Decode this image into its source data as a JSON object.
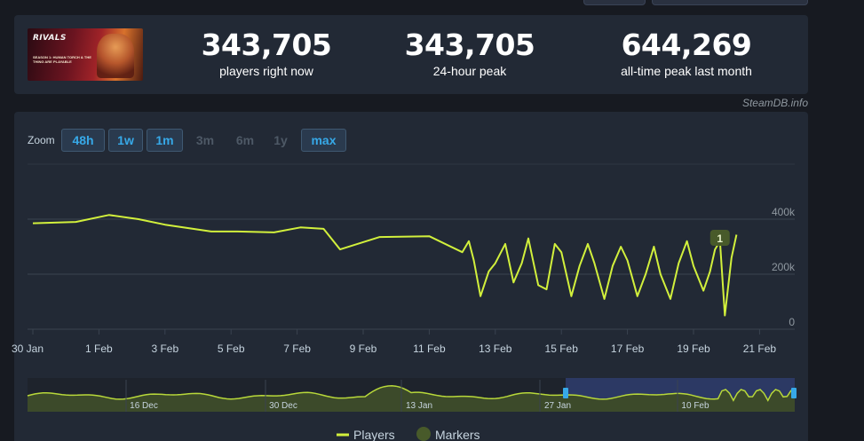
{
  "stats": {
    "current_value": "343,705",
    "current_label": "players right now",
    "peak24_value": "343,705",
    "peak24_label": "24-hour peak",
    "alltime_value": "644,269",
    "alltime_label": "all-time peak last month"
  },
  "game_banner": {
    "logo": "RIVALS",
    "subtitle": "SEASON 1: HUMAN TORCH & THE THING ARE PLAYABLE"
  },
  "credit": "SteamDB.info",
  "zoom": {
    "label": "Zoom",
    "options": [
      {
        "label": "48h",
        "enabled": true
      },
      {
        "label": "1w",
        "enabled": true
      },
      {
        "label": "1m",
        "enabled": true
      },
      {
        "label": "3m",
        "enabled": false
      },
      {
        "label": "6m",
        "enabled": false
      },
      {
        "label": "1y",
        "enabled": false
      },
      {
        "label": "max",
        "enabled": true
      }
    ]
  },
  "colors": {
    "series": "#d2f03c",
    "marker": "#485a2a",
    "accent": "#37a9e8",
    "navigator_selection": "#2f3d6e"
  },
  "chart_data": {
    "type": "line",
    "title": "",
    "x_tick_labels": [
      "30 Jan",
      "1 Feb",
      "3 Feb",
      "5 Feb",
      "7 Feb",
      "9 Feb",
      "11 Feb",
      "13 Feb",
      "15 Feb",
      "17 Feb",
      "19 Feb",
      "21 Feb"
    ],
    "y_tick_labels": [
      "0",
      "200k",
      "400k"
    ],
    "ylim": [
      0,
      400000
    ],
    "grid": true,
    "legend_placement": "bottom-center",
    "series": [
      {
        "name": "Players",
        "x_days_offset": [
          0,
          1.3,
          2.3,
          3.2,
          4.0,
          5.4,
          6.2,
          7.3,
          8.1,
          8.8,
          9.3,
          10.5,
          12.0,
          13.0,
          13.2,
          13.35,
          13.55,
          13.8,
          14.0,
          14.3,
          14.55,
          14.8,
          15.0,
          15.3,
          15.55,
          15.8,
          16.0,
          16.3,
          16.55,
          16.8,
          17.0,
          17.3,
          17.55,
          17.8,
          18.0,
          18.3,
          18.55,
          18.8,
          19.0,
          19.3,
          19.55,
          19.8,
          20.0,
          20.3,
          20.5,
          20.65,
          20.8,
          20.95,
          21.15,
          21.3
        ],
        "values": [
          385000,
          390000,
          415000,
          400000,
          380000,
          355000,
          355000,
          352000,
          370000,
          365000,
          290000,
          335000,
          338000,
          280000,
          320000,
          250000,
          120000,
          210000,
          240000,
          310000,
          170000,
          240000,
          330000,
          160000,
          145000,
          310000,
          280000,
          120000,
          230000,
          310000,
          240000,
          110000,
          230000,
          300000,
          250000,
          120000,
          200000,
          300000,
          200000,
          110000,
          240000,
          320000,
          230000,
          140000,
          210000,
          290000,
          320000,
          50000,
          260000,
          343705
        ]
      }
    ],
    "markers": [
      {
        "label": "1",
        "x_day_offset": 20.8
      }
    ],
    "navigator": {
      "x_tick_labels": [
        "16 Dec",
        "30 Dec",
        "13 Jan",
        "27 Jan",
        "10 Feb"
      ]
    }
  },
  "legend": {
    "players": "Players",
    "markers": "Markers"
  }
}
